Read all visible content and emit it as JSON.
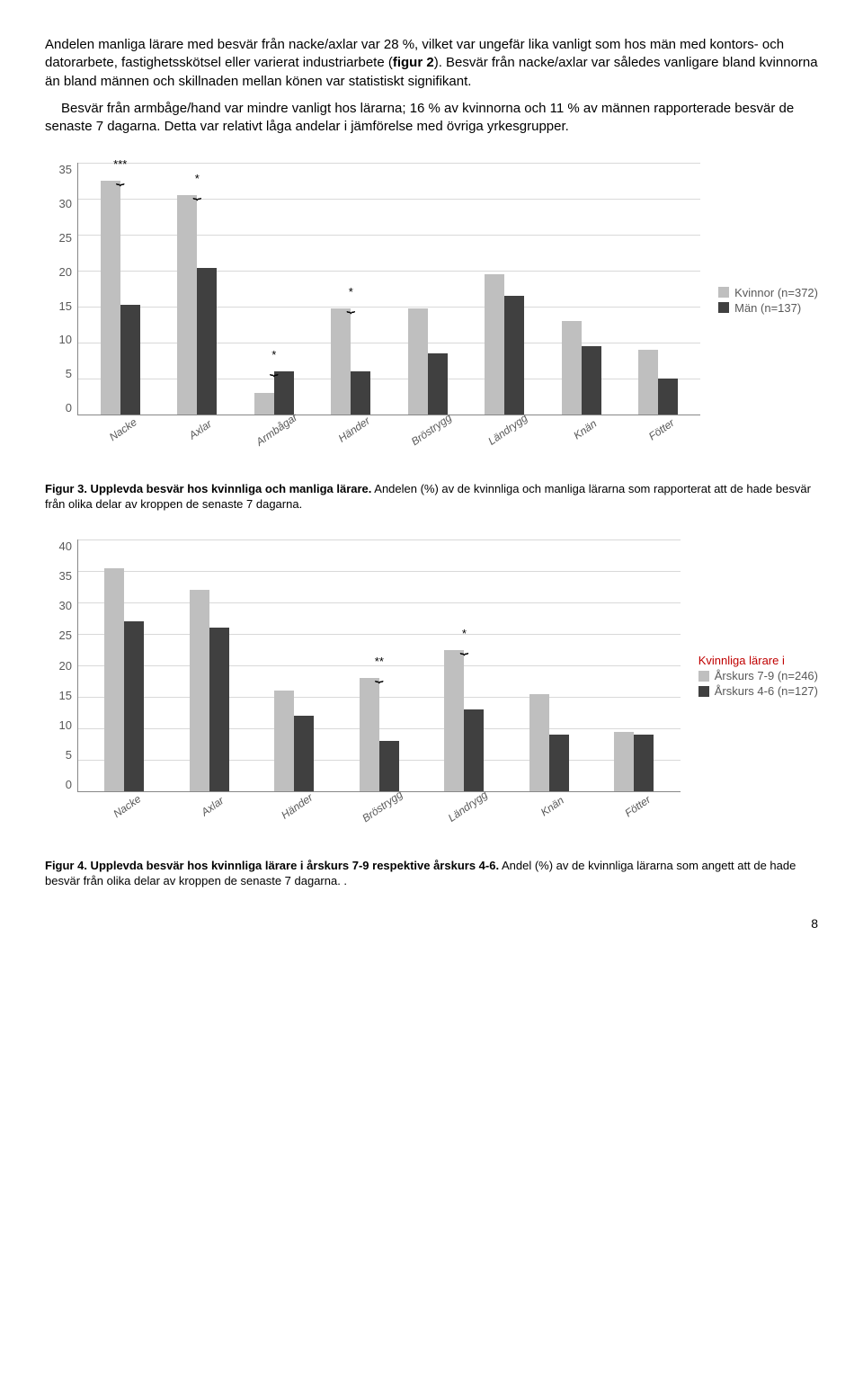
{
  "paragraphs": {
    "p1_a": "Andelen manliga lärare med besvär från nacke/axlar var 28 %, vilket var ungefär lika vanligt som hos män med kontors- och datorarbete, fastighetsskötsel eller varierat industriarbete (",
    "p1_b": "figur 2",
    "p1_c": "). Besvär från nacke/axlar var således vanligare bland kvinnorna än bland männen och skillnaden mellan könen var statistiskt signifikant.",
    "p2": "Besvär från armbåge/hand var mindre vanligt hos lärarna; 16 % av kvinnorna och 11 % av männen rapporterade besvär de senaste 7 dagarna. Detta var relativt låga andelar i jämförelse med övriga yrkesgrupper."
  },
  "chart1": {
    "ymax": 35,
    "ystep": 5,
    "legend": [
      {
        "label": "Kvinnor (n=372)",
        "cls": "light"
      },
      {
        "label": "Män (n=137)",
        "cls": "dark"
      }
    ],
    "cats": [
      "Nacke",
      "Axlar",
      "Armbågar",
      "Händer",
      "Bröstrygg",
      "Ländrygg",
      "Knän",
      "Fötter"
    ],
    "series": [
      {
        "cls": "light",
        "vals": [
          32.5,
          30.5,
          3,
          14.8,
          14.8,
          19.5,
          13,
          9
        ]
      },
      {
        "cls": "dark",
        "vals": [
          15.3,
          20.4,
          6,
          6,
          8.5,
          16.5,
          9.5,
          5
        ]
      }
    ],
    "annot": {
      "0": "***",
      "1": "*",
      "2": "*",
      "3": "*"
    }
  },
  "caption1_b": "Figur 3. Upplevda besvär hos kvinnliga och manliga lärare.",
  "caption1_r": " Andelen (%) av de kvinnliga och manliga lärarna som rapporterat att de hade besvär från olika delar av kroppen de senaste 7 dagarna.",
  "chart2": {
    "ymax": 40,
    "ystep": 5,
    "legend_title": "Kvinnliga lärare i",
    "legend": [
      {
        "label": "Årskurs 7-9 (n=246)",
        "cls": "light"
      },
      {
        "label": "Årskurs 4-6 (n=127)",
        "cls": "dark"
      }
    ],
    "cats": [
      "Nacke",
      "Axlar",
      "Händer",
      "Bröstrygg",
      "Ländrygg",
      "Knän",
      "Fötter"
    ],
    "series": [
      {
        "cls": "light",
        "vals": [
          35.5,
          32,
          16,
          18,
          22.5,
          15.5,
          9.5
        ]
      },
      {
        "cls": "dark",
        "vals": [
          27,
          26,
          12,
          8,
          13,
          9,
          9
        ]
      }
    ],
    "annot": {
      "3": "**",
      "4": "*"
    }
  },
  "caption2_b": "Figur 4. Upplevda besvär hos kvinnliga lärare i årskurs 7-9 respektive årskurs 4-6.",
  "caption2_r": " Andel (%) av de kvinnliga lärarna som angett att de hade besvär från olika delar av kroppen de senaste 7 dagarna. .",
  "page": "8"
}
